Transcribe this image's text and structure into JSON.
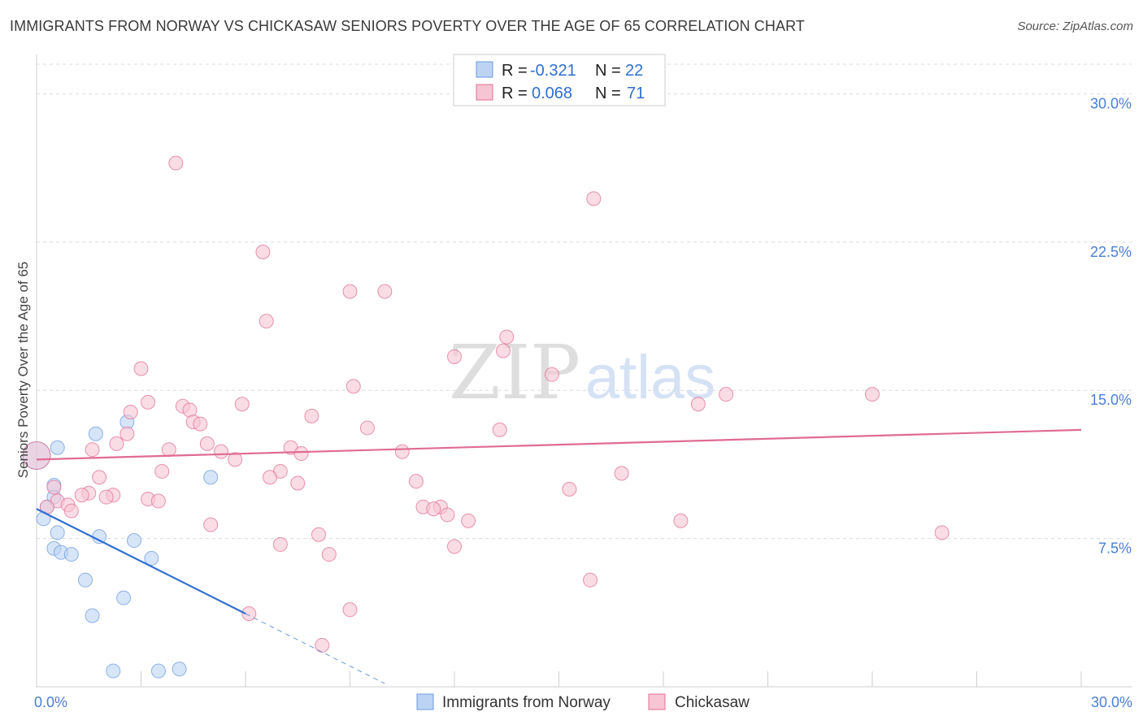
{
  "title": "IMMIGRANTS FROM NORWAY VS CHICKASAW SENIORS POVERTY OVER THE AGE OF 65 CORRELATION CHART",
  "source": "Source: ZipAtlas.com",
  "watermark": {
    "zip": "ZIP",
    "atlas": "atlas"
  },
  "colors": {
    "norway": "#6b9be0",
    "norway_fill": "#bcd3f3",
    "chickasaw": "#e27096",
    "chickasaw_fill": "#f7c4d3",
    "tick": "#4a7fd4",
    "grid": "#dddddd"
  },
  "chart_data": {
    "type": "scatter",
    "ylabel": "Seniors Poverty Over the Age of 65",
    "xlim": [
      0,
      30
    ],
    "ylim": [
      0,
      31.5
    ],
    "x_ticks": [
      "0.0%",
      "30.0%"
    ],
    "y_ticks": [
      {
        "v": 7.5,
        "label": "7.5%"
      },
      {
        "v": 15,
        "label": "15.0%"
      },
      {
        "v": 22.5,
        "label": "22.5%"
      },
      {
        "v": 30,
        "label": "30.0%"
      }
    ],
    "stats": [
      {
        "r_label": "R =",
        "r": "-0.321",
        "n_label": "N =",
        "n": "22"
      },
      {
        "r_label": "R =",
        "r": "0.068",
        "n_label": "N =",
        "n": "71"
      }
    ],
    "series": [
      {
        "name": "Immigrants from Norway",
        "trend": {
          "x0": 0,
          "y0": 9.0,
          "x1": 6.0,
          "y1": 3.7,
          "dash_to_x": 10.0
        },
        "points": [
          [
            0.0,
            11.7
          ],
          [
            0.3,
            9.1
          ],
          [
            0.6,
            12.1
          ],
          [
            1.7,
            12.8
          ],
          [
            2.6,
            13.4
          ],
          [
            0.5,
            10.2
          ],
          [
            0.5,
            9.6
          ],
          [
            0.2,
            8.5
          ],
          [
            0.6,
            7.8
          ],
          [
            1.8,
            7.6
          ],
          [
            2.8,
            7.4
          ],
          [
            0.5,
            7.0
          ],
          [
            0.7,
            6.8
          ],
          [
            1.0,
            6.7
          ],
          [
            3.3,
            6.5
          ],
          [
            1.4,
            5.4
          ],
          [
            2.5,
            4.5
          ],
          [
            1.6,
            3.6
          ],
          [
            5.0,
            10.6
          ],
          [
            2.2,
            0.8
          ],
          [
            3.5,
            0.8
          ],
          [
            4.1,
            0.9
          ]
        ]
      },
      {
        "name": "Chickasaw",
        "trend": {
          "x0": 0,
          "y0": 11.5,
          "x1": 30,
          "y1": 13.0
        },
        "points": [
          [
            0.0,
            11.7
          ],
          [
            4.0,
            26.5
          ],
          [
            16.0,
            24.7
          ],
          [
            6.5,
            22.0
          ],
          [
            9.0,
            20.0
          ],
          [
            10.0,
            20.0
          ],
          [
            6.6,
            18.5
          ],
          [
            13.5,
            17.7
          ],
          [
            13.4,
            17.0
          ],
          [
            12.0,
            16.7
          ],
          [
            3.0,
            16.1
          ],
          [
            14.8,
            15.8
          ],
          [
            9.1,
            15.2
          ],
          [
            19.8,
            14.8
          ],
          [
            24.0,
            14.8
          ],
          [
            3.2,
            14.4
          ],
          [
            5.9,
            14.3
          ],
          [
            19.0,
            14.3
          ],
          [
            4.2,
            14.2
          ],
          [
            4.4,
            14.0
          ],
          [
            2.7,
            13.9
          ],
          [
            7.9,
            13.7
          ],
          [
            4.5,
            13.4
          ],
          [
            4.7,
            13.3
          ],
          [
            9.5,
            13.1
          ],
          [
            13.3,
            13.0
          ],
          [
            2.6,
            12.8
          ],
          [
            2.3,
            12.3
          ],
          [
            4.9,
            12.3
          ],
          [
            1.6,
            12.0
          ],
          [
            3.8,
            12.0
          ],
          [
            5.3,
            11.9
          ],
          [
            7.3,
            12.1
          ],
          [
            7.6,
            11.8
          ],
          [
            10.5,
            11.9
          ],
          [
            5.7,
            11.5
          ],
          [
            3.6,
            10.9
          ],
          [
            7.0,
            10.9
          ],
          [
            16.8,
            10.8
          ],
          [
            1.8,
            10.6
          ],
          [
            6.7,
            10.6
          ],
          [
            7.5,
            10.3
          ],
          [
            10.9,
            10.4
          ],
          [
            0.5,
            10.1
          ],
          [
            15.3,
            10.0
          ],
          [
            1.5,
            9.8
          ],
          [
            2.2,
            9.7
          ],
          [
            2.0,
            9.6
          ],
          [
            1.3,
            9.7
          ],
          [
            3.2,
            9.5
          ],
          [
            3.5,
            9.4
          ],
          [
            0.6,
            9.4
          ],
          [
            0.9,
            9.2
          ],
          [
            0.3,
            9.1
          ],
          [
            11.1,
            9.1
          ],
          [
            11.6,
            9.1
          ],
          [
            11.4,
            9.0
          ],
          [
            11.8,
            8.7
          ],
          [
            1.0,
            8.9
          ],
          [
            12.4,
            8.4
          ],
          [
            18.5,
            8.4
          ],
          [
            5.0,
            8.2
          ],
          [
            8.1,
            7.7
          ],
          [
            26.0,
            7.8
          ],
          [
            7.0,
            7.2
          ],
          [
            12.0,
            7.1
          ],
          [
            8.4,
            6.7
          ],
          [
            15.9,
            5.4
          ],
          [
            9.0,
            3.9
          ],
          [
            6.1,
            3.7
          ],
          [
            8.2,
            2.1
          ]
        ]
      }
    ],
    "legend": [
      "Immigrants from Norway",
      "Chickasaw"
    ]
  }
}
